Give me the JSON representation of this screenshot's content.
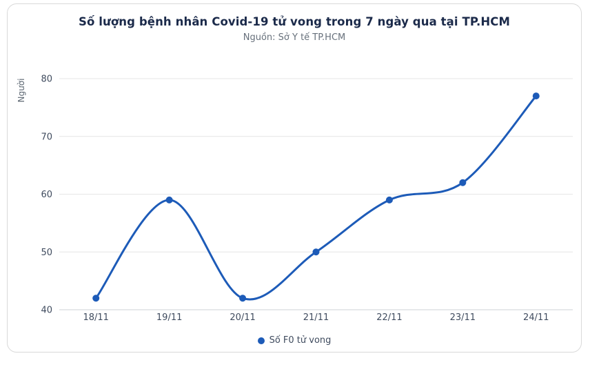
{
  "card": {
    "title": "Số lượng bệnh nhân Covid-19 tử vong trong 7 ngày qua tại TP.HCM",
    "subtitle": "Nguồn: Sở Y tế TP.HCM"
  },
  "chart_data": {
    "type": "line",
    "title": "Số lượng bệnh nhân Covid-19 tử vong trong 7 ngày qua tại TP.HCM",
    "subtitle": "Nguồn: Sở Y tế TP.HCM",
    "categories": [
      "18/11",
      "19/11",
      "20/11",
      "21/11",
      "22/11",
      "23/11",
      "24/11"
    ],
    "series": [
      {
        "name": "Số F0 tử vong",
        "values": [
          42,
          59,
          42,
          50,
          59,
          62,
          77
        ]
      }
    ],
    "xlabel": "",
    "ylabel": "Người",
    "ylim": [
      40,
      80
    ],
    "yticks": [
      40,
      50,
      60,
      70,
      80
    ],
    "grid": true,
    "line_style": "smooth",
    "markers": "circle",
    "legend_position": "bottom"
  },
  "colors": {
    "line": "#1d5bb8",
    "marker": "#1d5bb8",
    "title": "#1b2a4a",
    "subtitle": "#67707b",
    "axis_text": "#3f4b5e",
    "ylabel_text": "#5a6570",
    "grid": "#e6e6e6",
    "axis_line": "#ccd0d6",
    "card_border": "#d9d9d9"
  }
}
